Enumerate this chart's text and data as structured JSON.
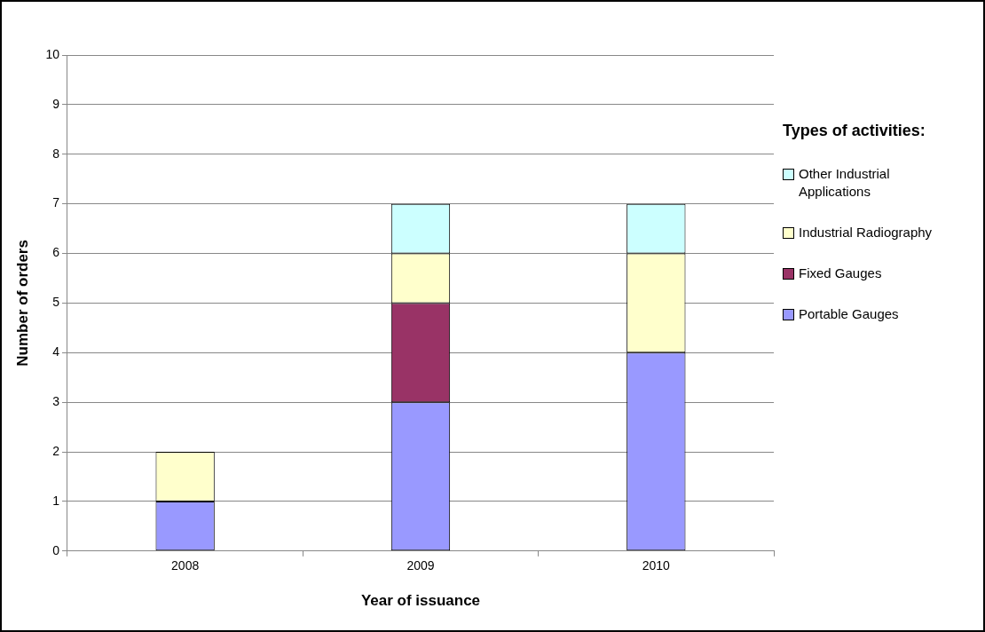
{
  "chart_data": {
    "type": "bar",
    "stacked": true,
    "xlabel": "Year of issuance",
    "ylabel": "Number of orders",
    "legend_title": "Types of activities:",
    "legend": "right",
    "categories": [
      "2008",
      "2009",
      "2010"
    ],
    "series": [
      {
        "name": "Portable Gauges",
        "color": "#9999ff",
        "values": [
          1,
          3,
          4
        ]
      },
      {
        "name": "Fixed Gauges",
        "color": "#993366",
        "values": [
          0,
          2,
          0
        ]
      },
      {
        "name": "Industrial Radiography",
        "color": "#ffffcc",
        "values": [
          1,
          1,
          2
        ]
      },
      {
        "name": "Other Industrial Applications",
        "color": "#ccffff",
        "values": [
          0,
          1,
          1
        ]
      }
    ],
    "ylim": [
      0,
      10
    ],
    "yticks": [
      0,
      1,
      2,
      3,
      4,
      5,
      6,
      7,
      8,
      9,
      10
    ],
    "grid": "y"
  }
}
